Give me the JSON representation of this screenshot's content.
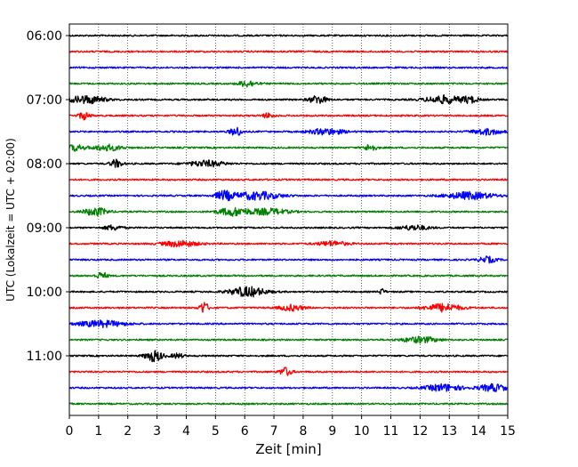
{
  "chart_data": {
    "type": "line",
    "title": "",
    "xlabel": "Zeit  [min]",
    "ylabel": "UTC (Lokalzeit = UTC + 02:00)",
    "xlim": [
      0,
      15
    ],
    "x_ticks": [
      "0",
      "1",
      "2",
      "3",
      "4",
      "5",
      "6",
      "7",
      "8",
      "9",
      "10",
      "11",
      "12",
      "13",
      "14",
      "15"
    ],
    "y_tick_labels": [
      "06:00",
      "07:00",
      "08:00",
      "09:00",
      "10:00",
      "11:00"
    ],
    "grid": {
      "vertical": true,
      "style": "dotted"
    },
    "trace_colors": [
      "#000000",
      "#ff0000",
      "#0000ff",
      "#008000"
    ],
    "traces": [
      {
        "start": "06:00",
        "color": "#000000",
        "bursts": []
      },
      {
        "start": "06:15",
        "color": "#ff0000",
        "bursts": []
      },
      {
        "start": "06:30",
        "color": "#0000ff",
        "bursts": []
      },
      {
        "start": "06:45",
        "color": "#008000",
        "bursts": [
          [
            6.1,
            0.3,
            1.6
          ]
        ]
      },
      {
        "start": "07:00",
        "color": "#000000",
        "bursts": [
          [
            0.6,
            0.6,
            2.0
          ],
          [
            8.5,
            0.3,
            2.0
          ],
          [
            12.8,
            0.6,
            2.0
          ],
          [
            13.7,
            0.3,
            1.5
          ]
        ]
      },
      {
        "start": "07:15",
        "color": "#ff0000",
        "bursts": [
          [
            0.5,
            0.2,
            1.8
          ],
          [
            6.8,
            0.2,
            1.2
          ]
        ]
      },
      {
        "start": "07:30",
        "color": "#0000ff",
        "bursts": [
          [
            5.7,
            0.2,
            2.2
          ],
          [
            8.8,
            0.6,
            1.5
          ],
          [
            14.3,
            0.5,
            1.5
          ]
        ]
      },
      {
        "start": "07:45",
        "color": "#008000",
        "bursts": [
          [
            0.2,
            0.3,
            1.5
          ],
          [
            1.3,
            0.5,
            1.5
          ],
          [
            10.3,
            0.2,
            1.8
          ]
        ]
      },
      {
        "start": "08:00",
        "color": "#000000",
        "bursts": [
          [
            1.6,
            0.2,
            2.0
          ],
          [
            4.7,
            0.6,
            1.5
          ]
        ]
      },
      {
        "start": "08:15",
        "color": "#ff0000",
        "bursts": []
      },
      {
        "start": "08:30",
        "color": "#0000ff",
        "bursts": [
          [
            5.3,
            0.3,
            2.2
          ],
          [
            6.4,
            0.8,
            2.0
          ],
          [
            13.7,
            0.8,
            1.8
          ]
        ]
      },
      {
        "start": "08:45",
        "color": "#008000",
        "bursts": [
          [
            0.9,
            0.4,
            2.0
          ],
          [
            5.6,
            0.5,
            2.0
          ],
          [
            6.8,
            0.7,
            1.5
          ]
        ]
      },
      {
        "start": "09:00",
        "color": "#000000",
        "bursts": [
          [
            1.5,
            0.3,
            1.2
          ],
          [
            11.8,
            0.5,
            1.2
          ]
        ]
      },
      {
        "start": "09:15",
        "color": "#ff0000",
        "bursts": [
          [
            3.8,
            0.6,
            1.5
          ],
          [
            9.0,
            0.5,
            1.2
          ]
        ]
      },
      {
        "start": "09:30",
        "color": "#0000ff",
        "bursts": [
          [
            14.3,
            0.3,
            1.5
          ]
        ]
      },
      {
        "start": "09:45",
        "color": "#008000",
        "bursts": [
          [
            1.1,
            0.2,
            1.6
          ]
        ]
      },
      {
        "start": "10:00",
        "color": "#000000",
        "bursts": [
          [
            6.1,
            0.6,
            2.5
          ],
          [
            10.7,
            0.1,
            1.5
          ]
        ]
      },
      {
        "start": "10:15",
        "color": "#ff0000",
        "bursts": [
          [
            4.6,
            0.15,
            3.0
          ],
          [
            7.6,
            0.4,
            1.5
          ],
          [
            12.8,
            0.6,
            2.0
          ]
        ]
      },
      {
        "start": "10:30",
        "color": "#0000ff",
        "bursts": [
          [
            1.1,
            0.8,
            1.6
          ]
        ]
      },
      {
        "start": "10:45",
        "color": "#008000",
        "bursts": [
          [
            12.0,
            0.6,
            1.5
          ]
        ]
      },
      {
        "start": "11:00",
        "color": "#000000",
        "bursts": [
          [
            2.9,
            0.3,
            2.8
          ],
          [
            3.7,
            0.2,
            1.2
          ]
        ]
      },
      {
        "start": "11:15",
        "color": "#ff0000",
        "bursts": [
          [
            7.4,
            0.2,
            2.2
          ]
        ]
      },
      {
        "start": "11:30",
        "color": "#0000ff",
        "bursts": [
          [
            12.8,
            0.6,
            1.8
          ],
          [
            14.5,
            0.5,
            1.8
          ]
        ]
      },
      {
        "start": "11:45",
        "color": "#008000",
        "bursts": []
      }
    ]
  }
}
